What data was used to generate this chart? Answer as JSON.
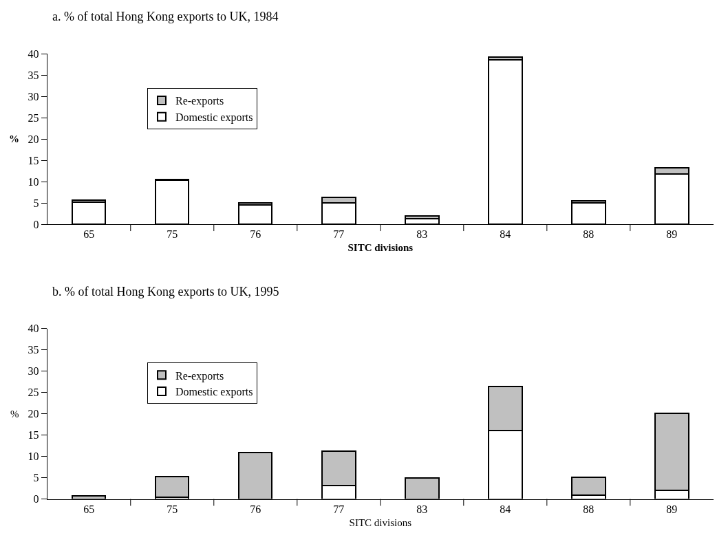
{
  "chart_data": [
    {
      "type": "bar",
      "stacked": true,
      "title": "a. % of total Hong Kong exports to UK, 1984",
      "xlabel": "SITC divisions",
      "ylabel": "%",
      "categories": [
        "65",
        "75",
        "76",
        "77",
        "83",
        "84",
        "88",
        "89"
      ],
      "series": [
        {
          "name": "Domestic exports",
          "color": "#ffffff",
          "values": [
            5.2,
            10.3,
            4.6,
            5.1,
            1.3,
            38.7,
            5.0,
            11.8
          ]
        },
        {
          "name": "Re-exports",
          "color": "#c0c0c0",
          "values": [
            0.4,
            0.3,
            0.5,
            1.2,
            0.7,
            0.5,
            0.5,
            1.4
          ]
        }
      ],
      "ylim": [
        0,
        40
      ],
      "yticks": [
        0,
        5,
        10,
        15,
        20,
        25,
        30,
        35,
        40
      ],
      "legend": "top left"
    },
    {
      "type": "bar",
      "stacked": true,
      "title": "b. % of total Hong Kong exports to UK, 1995",
      "xlabel": "SITC divisions",
      "ylabel": "%",
      "categories": [
        "65",
        "75",
        "76",
        "77",
        "83",
        "84",
        "88",
        "89"
      ],
      "series": [
        {
          "name": "Domestic exports",
          "color": "#ffffff",
          "values": [
            null,
            0.4,
            null,
            3.1,
            null,
            16.1,
            0.9,
            2.1
          ]
        },
        {
          "name": "Re-exports",
          "color": "#c0c0c0",
          "values": [
            0.8,
            4.9,
            10.9,
            8.1,
            5.0,
            10.3,
            4.2,
            18.0
          ]
        }
      ],
      "ylim": [
        0,
        40
      ],
      "yticks": [
        0,
        5,
        10,
        15,
        20,
        25,
        30,
        35,
        40
      ],
      "legend": "top left"
    }
  ]
}
